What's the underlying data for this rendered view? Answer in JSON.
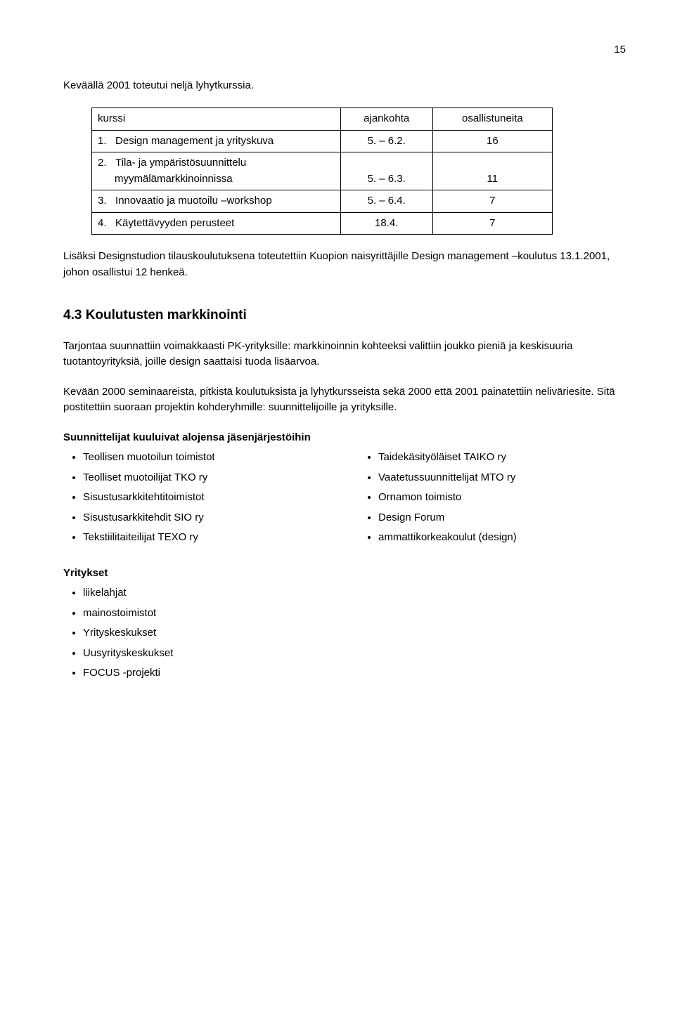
{
  "page_number": "15",
  "intro": "Keväällä 2001 toteutui neljä lyhytkurssia.",
  "table": {
    "headers": [
      "kurssi",
      "ajankohta",
      "osallistuneita"
    ],
    "rows": [
      {
        "num": "1.",
        "label": "Design management ja yrityskuva",
        "sub": "",
        "date": "5. – 6.2.",
        "count": "16"
      },
      {
        "num": "2.",
        "label": "Tila- ja ympäristösuunnittelu",
        "sub": "myymälämarkkinoinnissa",
        "date": "5. – 6.3.",
        "count": "11"
      },
      {
        "num": "3.",
        "label": "Innovaatio ja muotoilu –workshop",
        "sub": "",
        "date": "5. – 6.4.",
        "count": "7"
      },
      {
        "num": "4.",
        "label": "Käytettävyyden perusteet",
        "sub": "",
        "date": "18.4.",
        "count": "7"
      }
    ]
  },
  "after_table": "Lisäksi Designstudion tilauskoulutuksena toteutettiin Kuopion naisyrittäjille Design management –koulutus 13.1.2001, johon osallistui 12 henkeä.",
  "section_title": "4.3  Koulutusten markkinointi",
  "p1": "Tarjontaa suunnattiin voimakkaasti PK-yrityksille: markkinoinnin kohteeksi valittiin joukko pieniä ja keskisuuria tuotantoyrityksiä, joille design saattaisi tuoda lisäarvoa.",
  "p2": "Kevään 2000 seminaareista, pitkistä koulutuksista ja lyhytkursseista sekä 2000 että 2001 painatettiin neliväriesite. Sitä postitettiin suoraan projektin kohderyhmille: suunnittelijoille ja yrityksille.",
  "designers_head": "Suunnittelijat kuuluivat alojensa jäsenjärjestöihin",
  "designers_left": [
    "Teollisen muotoilun toimistot",
    "Teolliset muotoilijat TKO ry",
    "Sisustusarkkitehtitoimistot",
    "Sisustusarkkitehdit SIO ry",
    "Tekstiilitaiteilijat TEXO ry"
  ],
  "designers_right": [
    "Taidekäsityöläiset TAIKO ry",
    "Vaatetussuunnittelijat MTO ry",
    "Ornamon toimisto",
    "Design Forum",
    "ammattikorkeakoulut (design)"
  ],
  "companies_head": "Yritykset",
  "companies": [
    "liikelahjat",
    "mainostoimistot",
    "Yrityskeskukset",
    "Uusyrityskeskukset",
    "FOCUS -projekti"
  ]
}
